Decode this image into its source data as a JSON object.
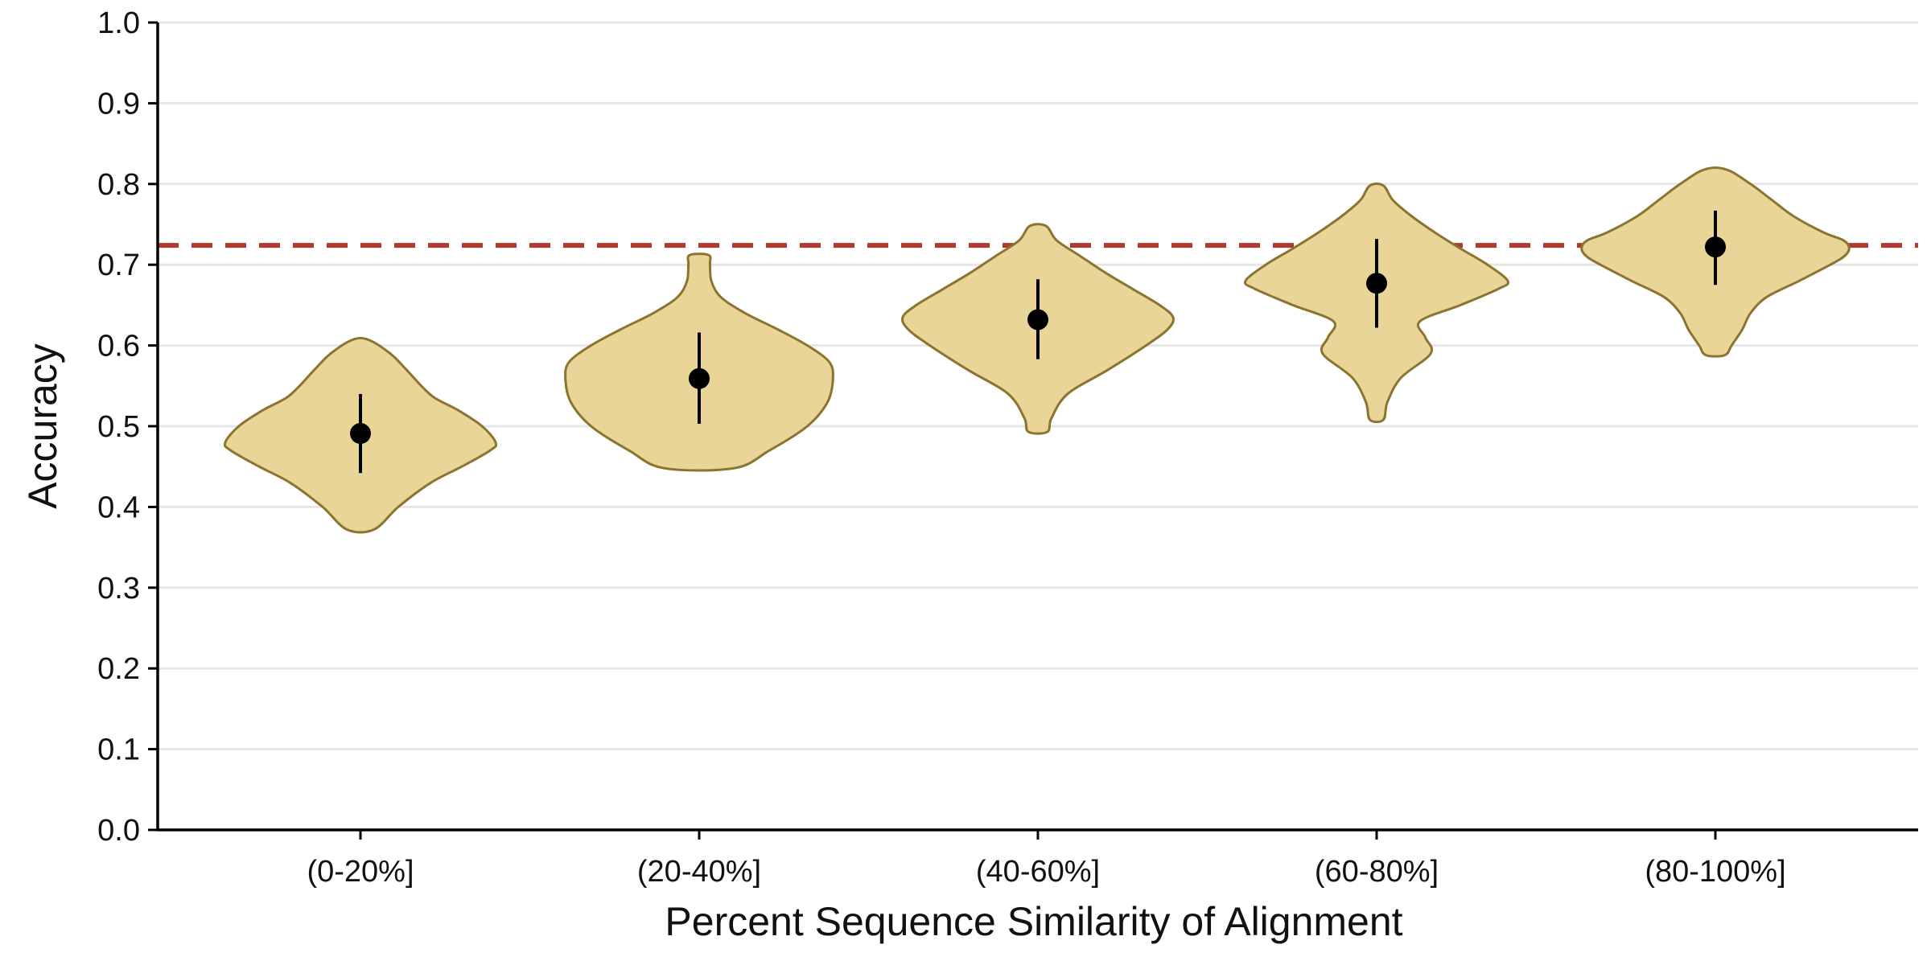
{
  "chart_data": {
    "type": "violin",
    "xlabel": "Percent Sequence Similarity of Alignment",
    "ylabel": "Accuracy",
    "ylim": [
      0,
      1
    ],
    "yticks": [
      "0.0",
      "0.1",
      "0.2",
      "0.3",
      "0.4",
      "0.5",
      "0.6",
      "0.7",
      "0.8",
      "0.9",
      "1.0"
    ],
    "grid": "horizontal",
    "reference_line": {
      "y": 0.724,
      "style": "dashed",
      "color": "#b03a2e"
    },
    "colors": {
      "violin_fill": "#e8d597",
      "violin_edge": "#8a7430",
      "point": "#000000",
      "grid": "#e6e6e6"
    },
    "categories": [
      "(0-20%]",
      "(20-40%]",
      "(40-60%]",
      "(60-80%]",
      "(80-100%]"
    ],
    "groups": [
      {
        "category": "(0-20%]",
        "mean": 0.491,
        "err_low": 0.442,
        "err_high": 0.54,
        "min": 0.372,
        "max": 0.607,
        "density_y": [
          0.372,
          0.4,
          0.43,
          0.45,
          0.47,
          0.48,
          0.5,
          0.52,
          0.535,
          0.55,
          0.57,
          0.59,
          0.607
        ],
        "density_width": [
          0.1,
          0.28,
          0.52,
          0.75,
          0.96,
          1.0,
          0.9,
          0.72,
          0.55,
          0.45,
          0.34,
          0.22,
          0.06
        ]
      },
      {
        "category": "(20-40%]",
        "mean": 0.559,
        "err_low": 0.503,
        "err_high": 0.616,
        "min": 0.448,
        "max": 0.712,
        "density_y": [
          0.448,
          0.47,
          0.5,
          0.53,
          0.56,
          0.58,
          0.6,
          0.62,
          0.64,
          0.66,
          0.68,
          0.7,
          0.712
        ],
        "density_width": [
          0.26,
          0.52,
          0.8,
          0.95,
          0.99,
          0.96,
          0.8,
          0.58,
          0.34,
          0.16,
          0.09,
          0.08,
          0.07
        ]
      },
      {
        "category": "(40-60%]",
        "mean": 0.632,
        "err_low": 0.583,
        "err_high": 0.682,
        "min": 0.493,
        "max": 0.748,
        "density_y": [
          0.493,
          0.51,
          0.54,
          0.57,
          0.6,
          0.62,
          0.635,
          0.65,
          0.67,
          0.69,
          0.71,
          0.73,
          0.748
        ],
        "density_width": [
          0.07,
          0.1,
          0.22,
          0.52,
          0.8,
          0.96,
          1.0,
          0.9,
          0.7,
          0.5,
          0.32,
          0.14,
          0.06
        ]
      },
      {
        "category": "(60-80%]",
        "mean": 0.677,
        "err_low": 0.622,
        "err_high": 0.732,
        "min": 0.508,
        "max": 0.798,
        "density_y": [
          0.508,
          0.53,
          0.56,
          0.59,
          0.61,
          0.63,
          0.65,
          0.67,
          0.68,
          0.7,
          0.72,
          0.74,
          0.76,
          0.78,
          0.798
        ],
        "density_width": [
          0.05,
          0.08,
          0.18,
          0.4,
          0.36,
          0.32,
          0.62,
          0.9,
          0.97,
          0.82,
          0.62,
          0.43,
          0.26,
          0.12,
          0.05
        ]
      },
      {
        "category": "(80-100%]",
        "mean": 0.722,
        "err_low": 0.675,
        "err_high": 0.767,
        "min": 0.588,
        "max": 0.818,
        "density_y": [
          0.588,
          0.6,
          0.62,
          0.64,
          0.66,
          0.68,
          0.7,
          0.71,
          0.72,
          0.73,
          0.74,
          0.76,
          0.78,
          0.8,
          0.818
        ],
        "density_width": [
          0.07,
          0.12,
          0.2,
          0.26,
          0.38,
          0.62,
          0.85,
          0.95,
          0.99,
          0.95,
          0.8,
          0.58,
          0.42,
          0.26,
          0.08
        ]
      }
    ]
  }
}
